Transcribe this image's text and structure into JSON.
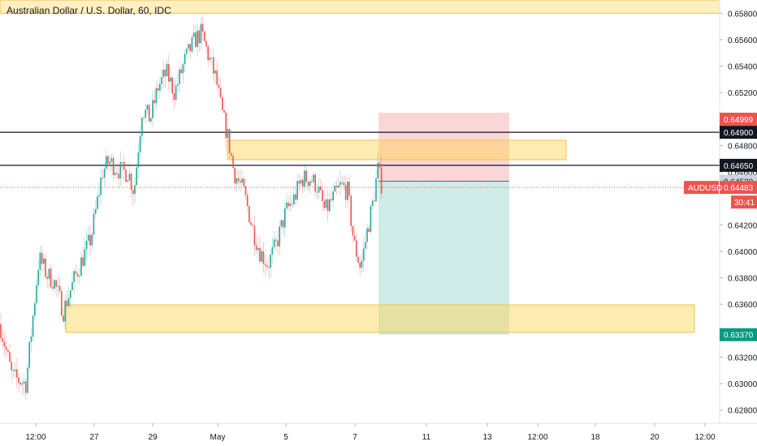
{
  "chart_data": {
    "type": "candlestick",
    "title": "Australian Dollar / U.S. Dollar, 60, IDC",
    "symbol": "AUDUSD",
    "countdown": "30:41",
    "ylim": [
      0.627,
      0.659
    ],
    "y_ticks": [
      "0.65800",
      "0.65600",
      "0.65400",
      "0.65200",
      "0.64800",
      "0.64600",
      "0.64200",
      "0.64000",
      "0.63800",
      "0.63600",
      "0.63200",
      "0.63000",
      "0.62800"
    ],
    "x_ticks": [
      "12:00",
      "27",
      "29",
      "May",
      "5",
      "7",
      "11",
      "13",
      "12:00",
      "18",
      "20",
      "12:00"
    ],
    "colors": {
      "up": "#26a69a",
      "down": "#ef5350",
      "zone": "#ffd54f",
      "stop": "#f8b4b4",
      "target": "#a7dcd6",
      "bg": "#ffffff"
    },
    "price_labels": [
      {
        "name": "stop-loss-price",
        "value": "0.64999",
        "price": 0.64999,
        "bg": "#ef5350",
        "fg": "#ffffff"
      },
      {
        "name": "resistance-line-price",
        "value": "0.64900",
        "price": 0.649,
        "bg": "#131722",
        "fg": "#ffffff"
      },
      {
        "name": "entry-line-price",
        "value": "0.64650",
        "price": 0.6465,
        "bg": "#131722",
        "fg": "#ffffff"
      },
      {
        "name": "position-entry-price",
        "value": "0.64530",
        "price": 0.6453,
        "bg": "#d1d4dc",
        "fg": "#131722"
      },
      {
        "name": "current-price",
        "value": "0.64483",
        "price": 0.64483,
        "bg": "#ef5350",
        "fg": "#ffffff"
      },
      {
        "name": "take-profit-price",
        "value": "0.63370",
        "price": 0.6337,
        "bg": "#089981",
        "fg": "#ffffff"
      }
    ],
    "horizontal_lines": [
      {
        "price": 0.649
      },
      {
        "price": 0.6465
      }
    ],
    "zones": [
      {
        "name": "top-supply-zone",
        "from_price": 0.658,
        "to_price": 0.659
      },
      {
        "name": "resistance-zone",
        "from_price": 0.6463,
        "to_price": 0.6477
      },
      {
        "name": "support-zone",
        "from_price": 0.6333,
        "to_price": 0.6352
      }
    ],
    "position": {
      "entry": 0.6453,
      "stop": 0.64999,
      "target": 0.6337
    },
    "ohlc_seed": 7,
    "anchors": [
      [
        0,
        0.6345
      ],
      [
        15,
        0.6305
      ],
      [
        32,
        0.63
      ],
      [
        48,
        0.6395
      ],
      [
        58,
        0.6382
      ],
      [
        66,
        0.6378
      ],
      [
        78,
        0.6355
      ],
      [
        92,
        0.638
      ],
      [
        112,
        0.641
      ],
      [
        126,
        0.646
      ],
      [
        134,
        0.6468
      ],
      [
        150,
        0.646
      ],
      [
        158,
        0.646
      ],
      [
        165,
        0.6445
      ],
      [
        175,
        0.6508
      ],
      [
        185,
        0.65
      ],
      [
        195,
        0.6525
      ],
      [
        205,
        0.6535
      ],
      [
        215,
        0.652
      ],
      [
        228,
        0.6545
      ],
      [
        240,
        0.656
      ],
      [
        248,
        0.6565
      ],
      [
        258,
        0.6545
      ],
      [
        266,
        0.653
      ],
      [
        273,
        0.6505
      ],
      [
        280,
        0.6488
      ],
      [
        288,
        0.646
      ],
      [
        300,
        0.6445
      ],
      [
        312,
        0.6415
      ],
      [
        320,
        0.64
      ],
      [
        330,
        0.639
      ],
      [
        340,
        0.6405
      ],
      [
        352,
        0.643
      ],
      [
        362,
        0.644
      ],
      [
        372,
        0.6455
      ],
      [
        382,
        0.6455
      ],
      [
        390,
        0.645
      ],
      [
        400,
        0.643
      ],
      [
        410,
        0.644
      ],
      [
        420,
        0.645
      ],
      [
        428,
        0.6445
      ],
      [
        436,
        0.6405
      ],
      [
        444,
        0.6388
      ],
      [
        452,
        0.6415
      ],
      [
        460,
        0.644
      ],
      [
        465,
        0.6462
      ],
      [
        470,
        0.645
      ]
    ]
  }
}
